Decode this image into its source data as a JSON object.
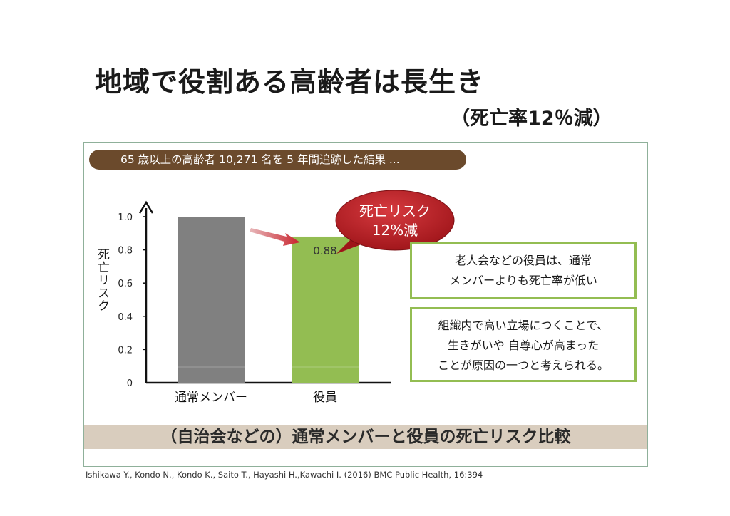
{
  "page": {
    "title": "地域で役割ある高齢者は長生き",
    "subtitle": "（死亡率12％減）",
    "banner": "65 歳以上の高齢者 10,271 名を 5 年間追跡した結果 ...",
    "callout": {
      "line1": "死亡リスク",
      "line2": "12%減"
    },
    "notes": [
      {
        "lines": [
          "老人会などの役員は、通常",
          "メンバーよりも死亡率が低い"
        ]
      },
      {
        "lines": [
          "組織内で高い立場につくことで、",
          "生きがいや 自尊心が高まった",
          "ことが原因の一つと考えられる。"
        ]
      }
    ],
    "bottom_caption": "（自治会などの）通常メンバーと役員の死亡リスク比較",
    "citation": "Ishikawa Y., Kondo N., Kondo K., Saito T., Hayashi H.,Kawachi I. (2016) BMC Public Health, 16:394"
  },
  "chart_data": {
    "type": "bar",
    "categories": [
      "通常メンバー",
      "役員"
    ],
    "values": [
      1.0,
      0.88
    ],
    "value_labels": [
      "",
      "0.88"
    ],
    "ylabel": "死亡リスク",
    "ylim": [
      0,
      1.0
    ],
    "yticks": [
      0,
      0.2,
      0.4,
      0.6,
      0.8,
      1.0
    ],
    "ytick_labels": [
      "0",
      "0.2",
      "0.4",
      "0.6",
      "0.8",
      "1.0"
    ],
    "colors": [
      "#808080",
      "#93bd52"
    ],
    "callout_color": "#b81a21",
    "grid": false
  }
}
